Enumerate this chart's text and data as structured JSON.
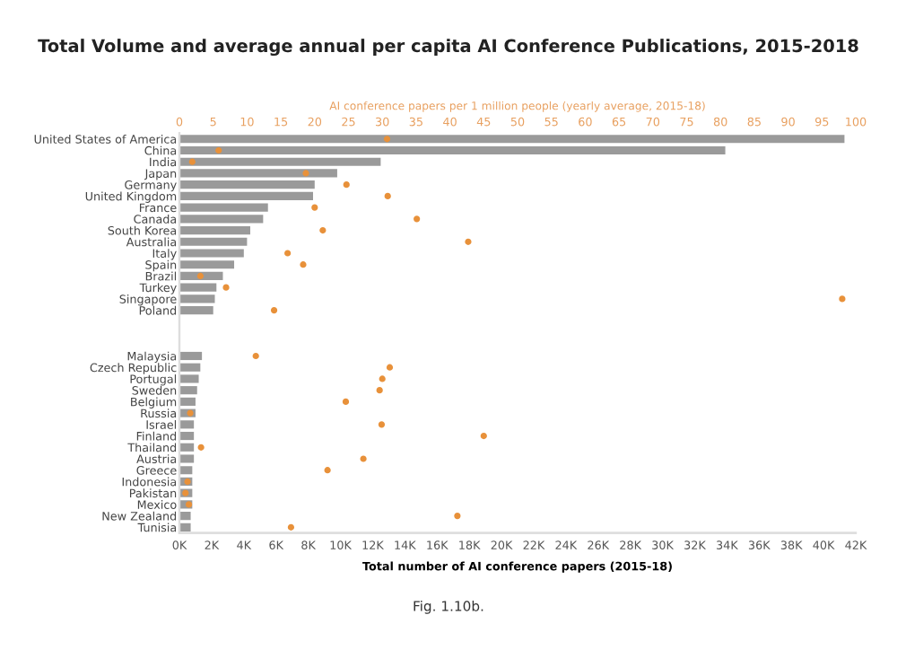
{
  "chart_data": {
    "type": "bar",
    "orientation": "horizontal",
    "title": "Total Volume and average annual per capita AI Conference Publications, 2015-2018",
    "xlabel": "Total number of AI conference papers (2015-18)",
    "x2label": "AI conference papers per 1 million people (yearly average, 2015-18)",
    "annotations": [
      "Fig. 1.10b."
    ],
    "categories": [
      "United States of America",
      "China",
      "India",
      "Japan",
      "Germany",
      "United Kingdom",
      "France",
      "Canada",
      "South Korea",
      "Australia",
      "Italy",
      "Spain",
      "Brazil",
      "Turkey",
      "Singapore",
      "Poland",
      null,
      null,
      null,
      "Malaysia",
      "Czech Republic",
      "Portugal",
      "Sweden",
      "Belgium",
      "Russia",
      "Israel",
      "Finland",
      "Thailand",
      "Austria",
      "Greece",
      "Indonesia",
      "Pakistan",
      "Mexico",
      "New Zealand",
      "Tunisia"
    ],
    "xlim": [
      0,
      42000
    ],
    "xticks": [
      {
        "value": 0,
        "label": "0K"
      },
      {
        "value": 2000,
        "label": "2K"
      },
      {
        "value": 4000,
        "label": "4K"
      },
      {
        "value": 6000,
        "label": "6K"
      },
      {
        "value": 8000,
        "label": "8K"
      },
      {
        "value": 10000,
        "label": "10K"
      },
      {
        "value": 12000,
        "label": "12K"
      },
      {
        "value": 14000,
        "label": "14K"
      },
      {
        "value": 16000,
        "label": "16K"
      },
      {
        "value": 18000,
        "label": "18K"
      },
      {
        "value": 20000,
        "label": "20K"
      },
      {
        "value": 22000,
        "label": "22K"
      },
      {
        "value": 24000,
        "label": "24K"
      },
      {
        "value": 26000,
        "label": "26K"
      },
      {
        "value": 28000,
        "label": "28K"
      },
      {
        "value": 30000,
        "label": "30K"
      },
      {
        "value": 32000,
        "label": "32K"
      },
      {
        "value": 34000,
        "label": "34K"
      },
      {
        "value": 36000,
        "label": "36K"
      },
      {
        "value": 38000,
        "label": "38K"
      },
      {
        "value": 40000,
        "label": "40K"
      },
      {
        "value": 42000,
        "label": "42K"
      }
    ],
    "x2lim": [
      0,
      100
    ],
    "x2ticks": [
      0,
      5,
      10,
      15,
      20,
      25,
      30,
      35,
      40,
      45,
      50,
      55,
      60,
      65,
      70,
      75,
      80,
      85,
      90,
      95,
      100
    ],
    "series": [
      {
        "color": "#9a9a9a",
        "values": [
          41300,
          33900,
          12500,
          9800,
          8400,
          8300,
          5500,
          5200,
          4400,
          4200,
          4000,
          3400,
          2700,
          2300,
          2200,
          2100,
          null,
          null,
          null,
          1400,
          1300,
          1200,
          1100,
          1000,
          1000,
          900,
          900,
          900,
          900,
          800,
          800,
          800,
          800,
          700,
          700
        ]
      },
      {
        "type": "scatter",
        "axis": "x2",
        "color": "#e8913a",
        "marker": "circle",
        "values": [
          30.7,
          5.8,
          1.9,
          18.7,
          24.7,
          30.8,
          20,
          35.1,
          21.2,
          42.7,
          16,
          18.3,
          3.1,
          6.9,
          98,
          14,
          null,
          null,
          null,
          11.3,
          31.1,
          30,
          29.6,
          24.6,
          1.6,
          29.9,
          45,
          3.2,
          27.2,
          21.9,
          1.2,
          0.9,
          1.4,
          41.1,
          16.5
        ]
      }
    ]
  }
}
